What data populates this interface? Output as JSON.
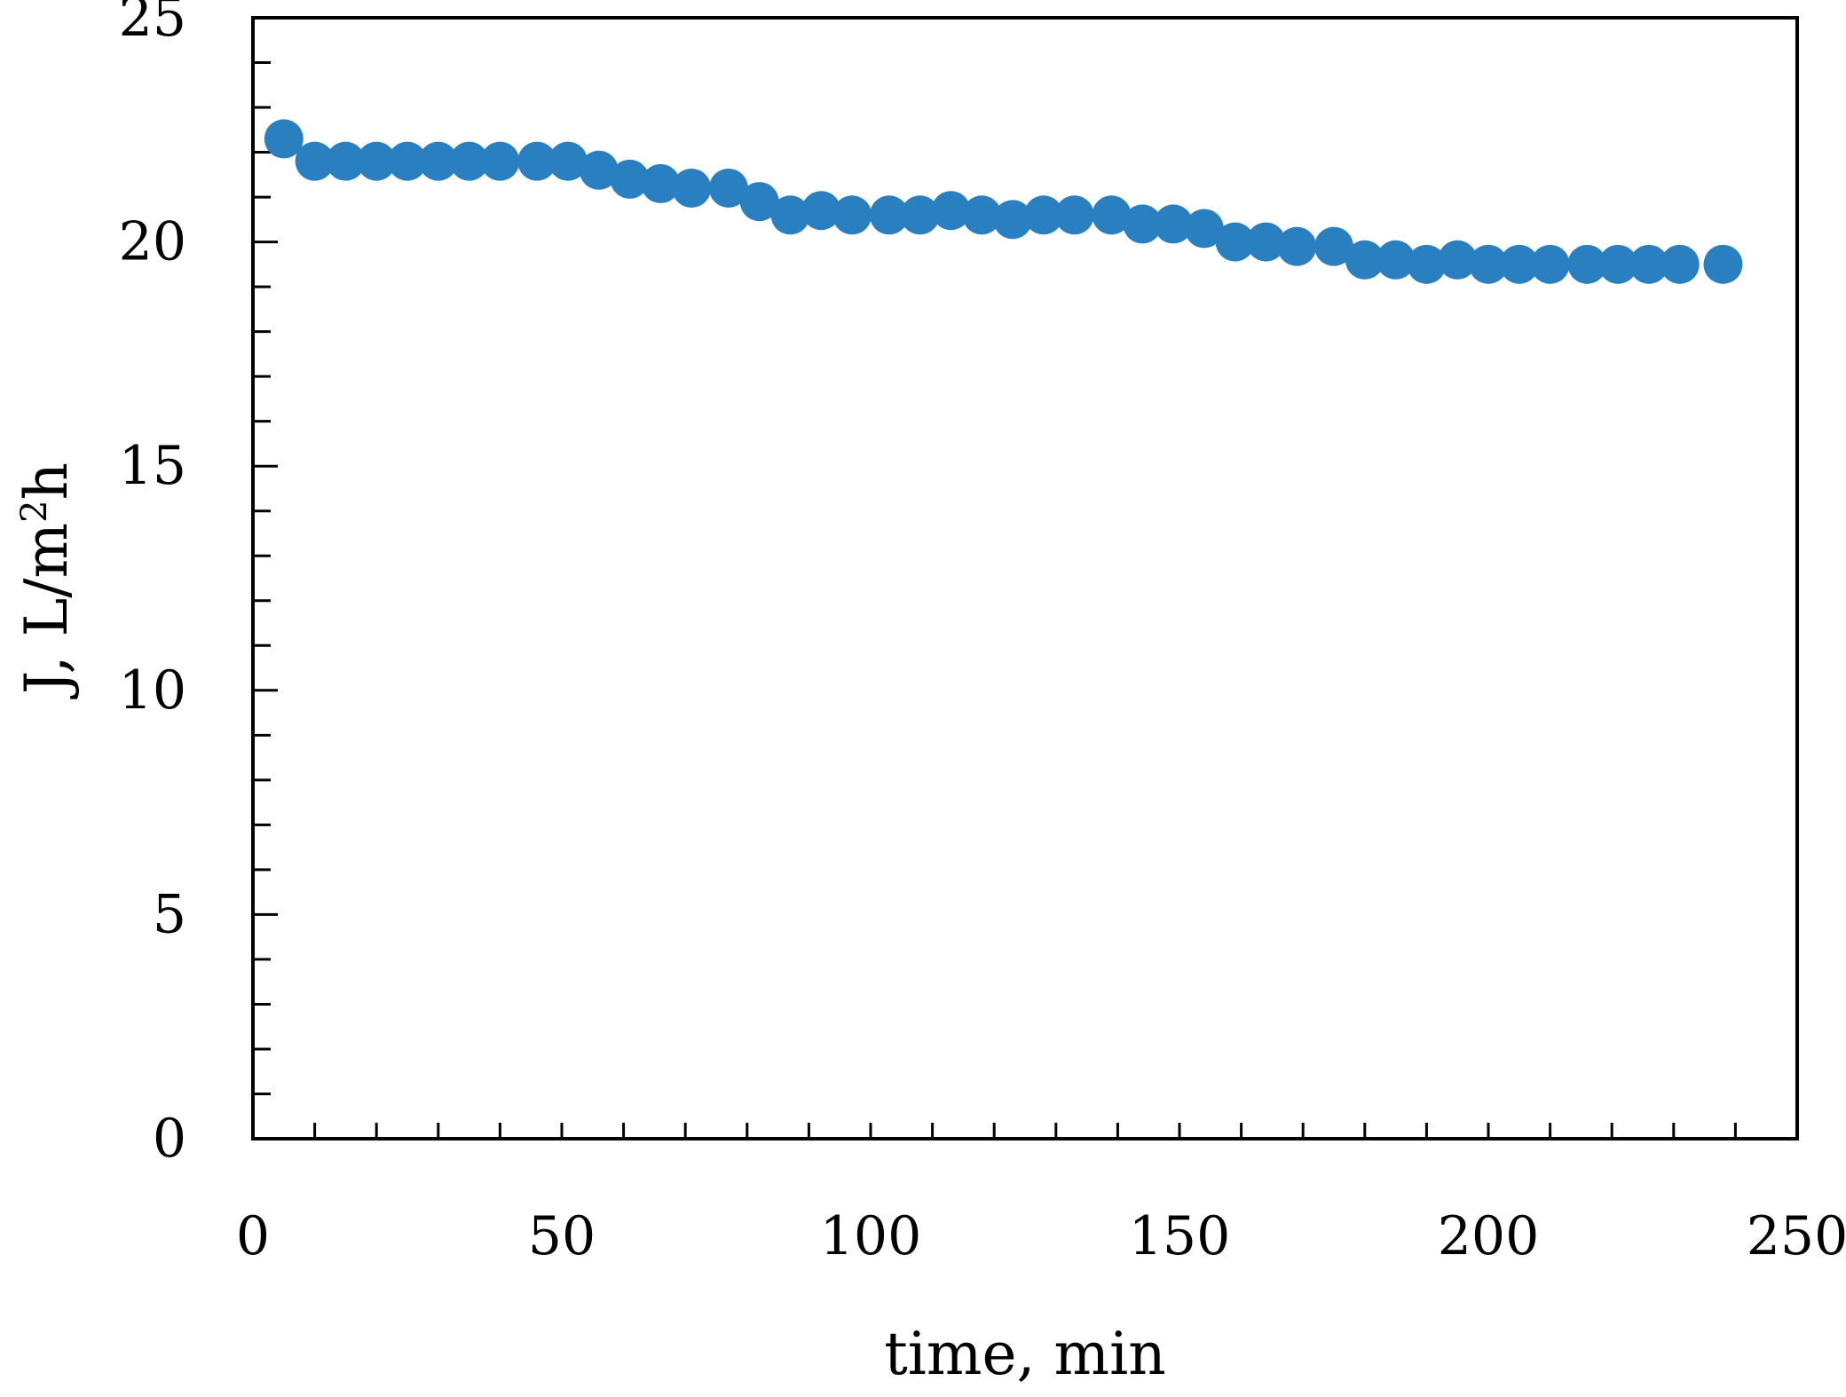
{
  "colors": {
    "marker": "#2a7fc1",
    "axis": "#000000",
    "background": "#ffffff"
  },
  "chart_data": {
    "type": "scatter",
    "title": "",
    "xlabel": "time, min",
    "ylabel_parts": [
      "J, L/m",
      "2",
      "h"
    ],
    "xlim": [
      0,
      250
    ],
    "ylim": [
      0,
      25
    ],
    "x_ticks": [
      0,
      50,
      100,
      150,
      200,
      250
    ],
    "y_ticks": [
      0,
      5,
      10,
      15,
      20,
      25
    ],
    "x_minor_step": 10,
    "y_minor_step": 1,
    "grid": false,
    "legend": "none",
    "series": [
      {
        "x": [
          5,
          10,
          15,
          20,
          25,
          30,
          35,
          40,
          46,
          51,
          56,
          61,
          66,
          71,
          77,
          82,
          87,
          92,
          97,
          103,
          108,
          113,
          118,
          123,
          128,
          133,
          139,
          144,
          149,
          154,
          159,
          164,
          169,
          175,
          180,
          185,
          190,
          195,
          200,
          205,
          210,
          216,
          221,
          226,
          231,
          238
        ],
        "y": [
          22.3,
          21.8,
          21.8,
          21.8,
          21.8,
          21.8,
          21.8,
          21.8,
          21.8,
          21.8,
          21.6,
          21.4,
          21.3,
          21.2,
          21.2,
          20.9,
          20.6,
          20.7,
          20.6,
          20.6,
          20.6,
          20.7,
          20.6,
          20.5,
          20.6,
          20.6,
          20.6,
          20.4,
          20.4,
          20.3,
          20.0,
          20.0,
          19.9,
          19.9,
          19.6,
          19.6,
          19.5,
          19.6,
          19.5,
          19.5,
          19.5,
          19.5,
          19.5,
          19.5,
          19.5,
          19.5
        ]
      }
    ]
  }
}
